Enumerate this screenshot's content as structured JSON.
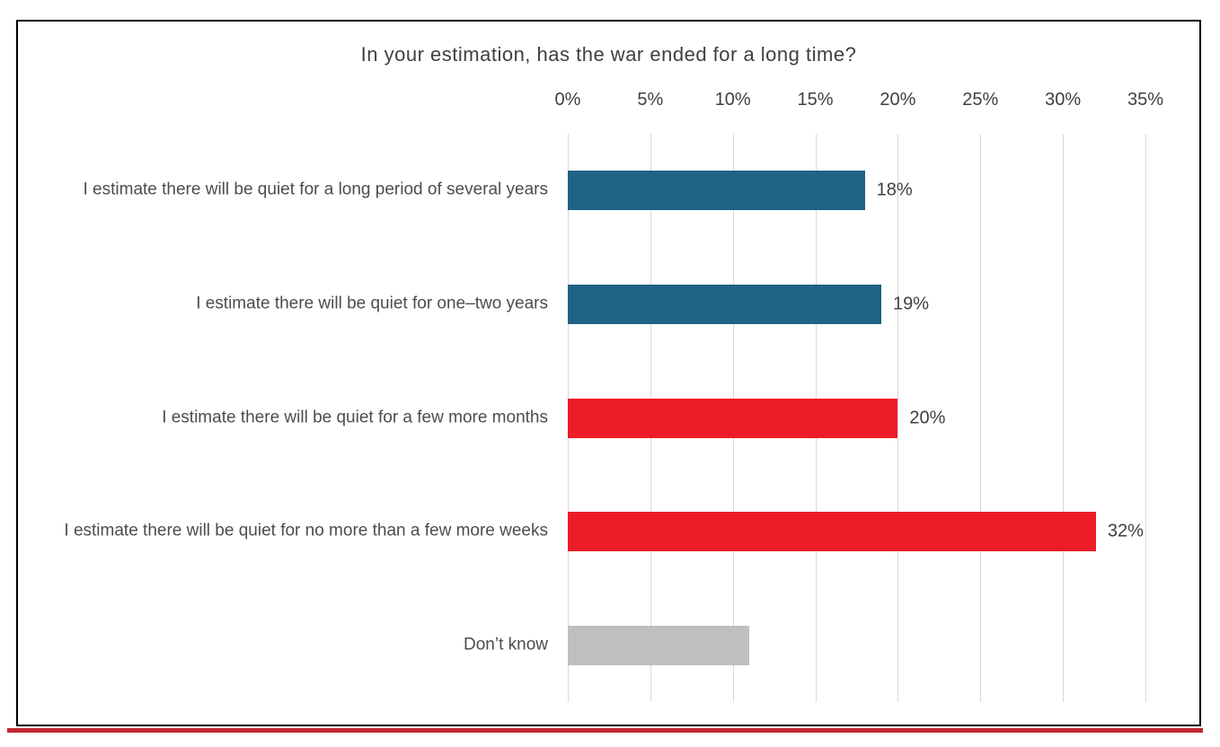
{
  "frame": {
    "border_color": "#000000",
    "accent_color": "#C0262E"
  },
  "chart_data": {
    "type": "bar",
    "orientation": "horizontal",
    "title": "In your estimation, has the war ended for a long time?",
    "categories": [
      "I estimate there will be quiet for a long period of several years",
      "I estimate there will be quiet for one–two years",
      "I estimate there will be quiet for a few more months",
      "I estimate there will be quiet for no more than a few more weeks",
      "Don’t know"
    ],
    "values": [
      18,
      19,
      20,
      32,
      11
    ],
    "data_labels": [
      "18%",
      "19%",
      "20%",
      "32%",
      ""
    ],
    "bar_colors": [
      "#1F6385",
      "#1F6385",
      "#EC1C28",
      "#EC1C28",
      "#BFBFBF"
    ],
    "x_tick_labels": [
      "0%",
      "5%",
      "10%",
      "15%",
      "20%",
      "25%",
      "30%",
      "35%"
    ],
    "x_tick_values": [
      0,
      5,
      10,
      15,
      20,
      25,
      30,
      35
    ],
    "xlim": [
      0,
      35
    ],
    "xlabel": "",
    "ylabel": "",
    "grid": "vertical",
    "axis_position": "top",
    "legend": "none",
    "colors": {
      "grid": "#D9D9D9",
      "text": "#404040",
      "category_text": "#4d4d4d"
    }
  }
}
